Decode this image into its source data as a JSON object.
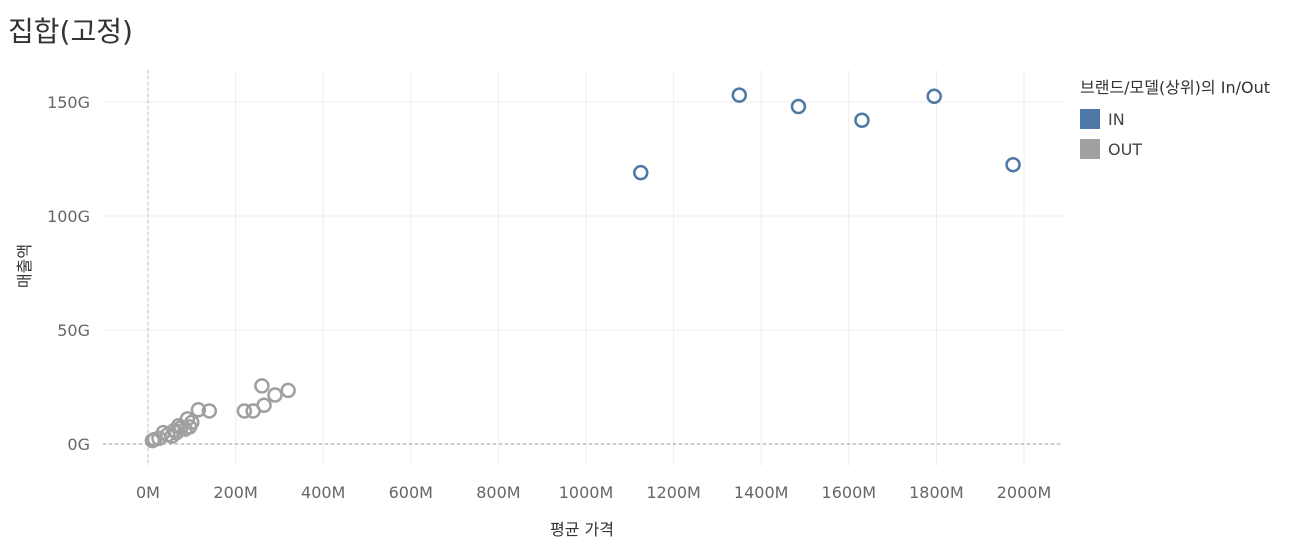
{
  "page": {
    "title": "집합(고정)"
  },
  "legend": {
    "title": "브랜드/모델(상위)의 In/Out",
    "items": [
      {
        "label": "IN",
        "color": "#4e79a7"
      },
      {
        "label": "OUT",
        "color": "#a0a0a0"
      }
    ]
  },
  "chart_data": {
    "type": "scatter",
    "title": "집합(고정)",
    "xlabel": "평균 가격",
    "ylabel": "매출액",
    "xlim": [
      -100,
      2100
    ],
    "ylim": [
      -10,
      165
    ],
    "x_ticks": [
      {
        "value": 0,
        "label": "0M"
      },
      {
        "value": 200,
        "label": "200M"
      },
      {
        "value": 400,
        "label": "400M"
      },
      {
        "value": 600,
        "label": "600M"
      },
      {
        "value": 800,
        "label": "800M"
      },
      {
        "value": 1000,
        "label": "1000M"
      },
      {
        "value": 1200,
        "label": "1200M"
      },
      {
        "value": 1400,
        "label": "1400M"
      },
      {
        "value": 1600,
        "label": "1600M"
      },
      {
        "value": 1800,
        "label": "1800M"
      },
      {
        "value": 2000,
        "label": "2000M"
      }
    ],
    "y_ticks": [
      {
        "value": 0,
        "label": "0G"
      },
      {
        "value": 50,
        "label": "50G"
      },
      {
        "value": 100,
        "label": "100G"
      },
      {
        "value": 150,
        "label": "150G"
      }
    ],
    "grid": true,
    "legend_position": "top-right",
    "series": [
      {
        "name": "IN",
        "color": "#4e79a7",
        "points": [
          {
            "x": 1125,
            "y": 119
          },
          {
            "x": 1350,
            "y": 153
          },
          {
            "x": 1485,
            "y": 148
          },
          {
            "x": 1630,
            "y": 142
          },
          {
            "x": 1795,
            "y": 152.5
          },
          {
            "x": 1975,
            "y": 122.5
          }
        ]
      },
      {
        "name": "OUT",
        "color": "#a0a0a0",
        "points": [
          {
            "x": 10,
            "y": 1.5
          },
          {
            "x": 15,
            "y": 2
          },
          {
            "x": 25,
            "y": 2.5
          },
          {
            "x": 35,
            "y": 5
          },
          {
            "x": 45,
            "y": 4
          },
          {
            "x": 55,
            "y": 3.5
          },
          {
            "x": 60,
            "y": 6
          },
          {
            "x": 65,
            "y": 5
          },
          {
            "x": 70,
            "y": 8
          },
          {
            "x": 75,
            "y": 7
          },
          {
            "x": 85,
            "y": 6.5
          },
          {
            "x": 90,
            "y": 11
          },
          {
            "x": 95,
            "y": 7.5
          },
          {
            "x": 100,
            "y": 9.5
          },
          {
            "x": 115,
            "y": 15
          },
          {
            "x": 140,
            "y": 14.5
          },
          {
            "x": 220,
            "y": 14.5
          },
          {
            "x": 240,
            "y": 14.5
          },
          {
            "x": 260,
            "y": 25.5
          },
          {
            "x": 265,
            "y": 17
          },
          {
            "x": 290,
            "y": 21.5
          },
          {
            "x": 320,
            "y": 23.5
          }
        ]
      }
    ]
  }
}
